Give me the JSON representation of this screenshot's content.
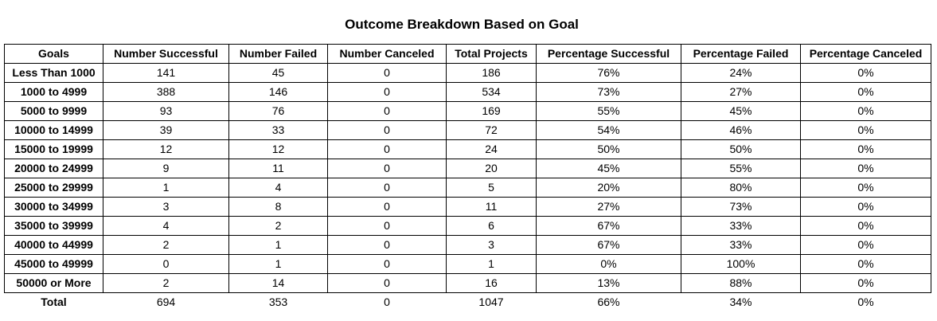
{
  "chart_data": {
    "type": "table",
    "title": "Outcome Breakdown Based on Goal",
    "columns": [
      "Goals",
      "Number Successful",
      "Number Failed",
      "Number Canceled",
      "Total Projects",
      "Percentage Successful",
      "Percentage Failed",
      "Percentage Canceled"
    ],
    "rows": [
      [
        "Less Than 1000",
        "141",
        "45",
        "0",
        "186",
        "76%",
        "24%",
        "0%"
      ],
      [
        "1000 to 4999",
        "388",
        "146",
        "0",
        "534",
        "73%",
        "27%",
        "0%"
      ],
      [
        "5000 to 9999",
        "93",
        "76",
        "0",
        "169",
        "55%",
        "45%",
        "0%"
      ],
      [
        "10000 to 14999",
        "39",
        "33",
        "0",
        "72",
        "54%",
        "46%",
        "0%"
      ],
      [
        "15000 to 19999",
        "12",
        "12",
        "0",
        "24",
        "50%",
        "50%",
        "0%"
      ],
      [
        "20000 to 24999",
        "9",
        "11",
        "0",
        "20",
        "45%",
        "55%",
        "0%"
      ],
      [
        "25000 to 29999",
        "1",
        "4",
        "0",
        "5",
        "20%",
        "80%",
        "0%"
      ],
      [
        "30000 to 34999",
        "3",
        "8",
        "0",
        "11",
        "27%",
        "73%",
        "0%"
      ],
      [
        "35000 to 39999",
        "4",
        "2",
        "0",
        "6",
        "67%",
        "33%",
        "0%"
      ],
      [
        "40000 to 44999",
        "2",
        "1",
        "0",
        "3",
        "67%",
        "33%",
        "0%"
      ],
      [
        "45000 to 49999",
        "0",
        "1",
        "0",
        "1",
        "0%",
        "100%",
        "0%"
      ],
      [
        "50000 or More",
        "2",
        "14",
        "0",
        "16",
        "13%",
        "88%",
        "0%"
      ]
    ],
    "total_row": [
      "Total",
      "694",
      "353",
      "0",
      "1047",
      "66%",
      "34%",
      "0%"
    ]
  }
}
